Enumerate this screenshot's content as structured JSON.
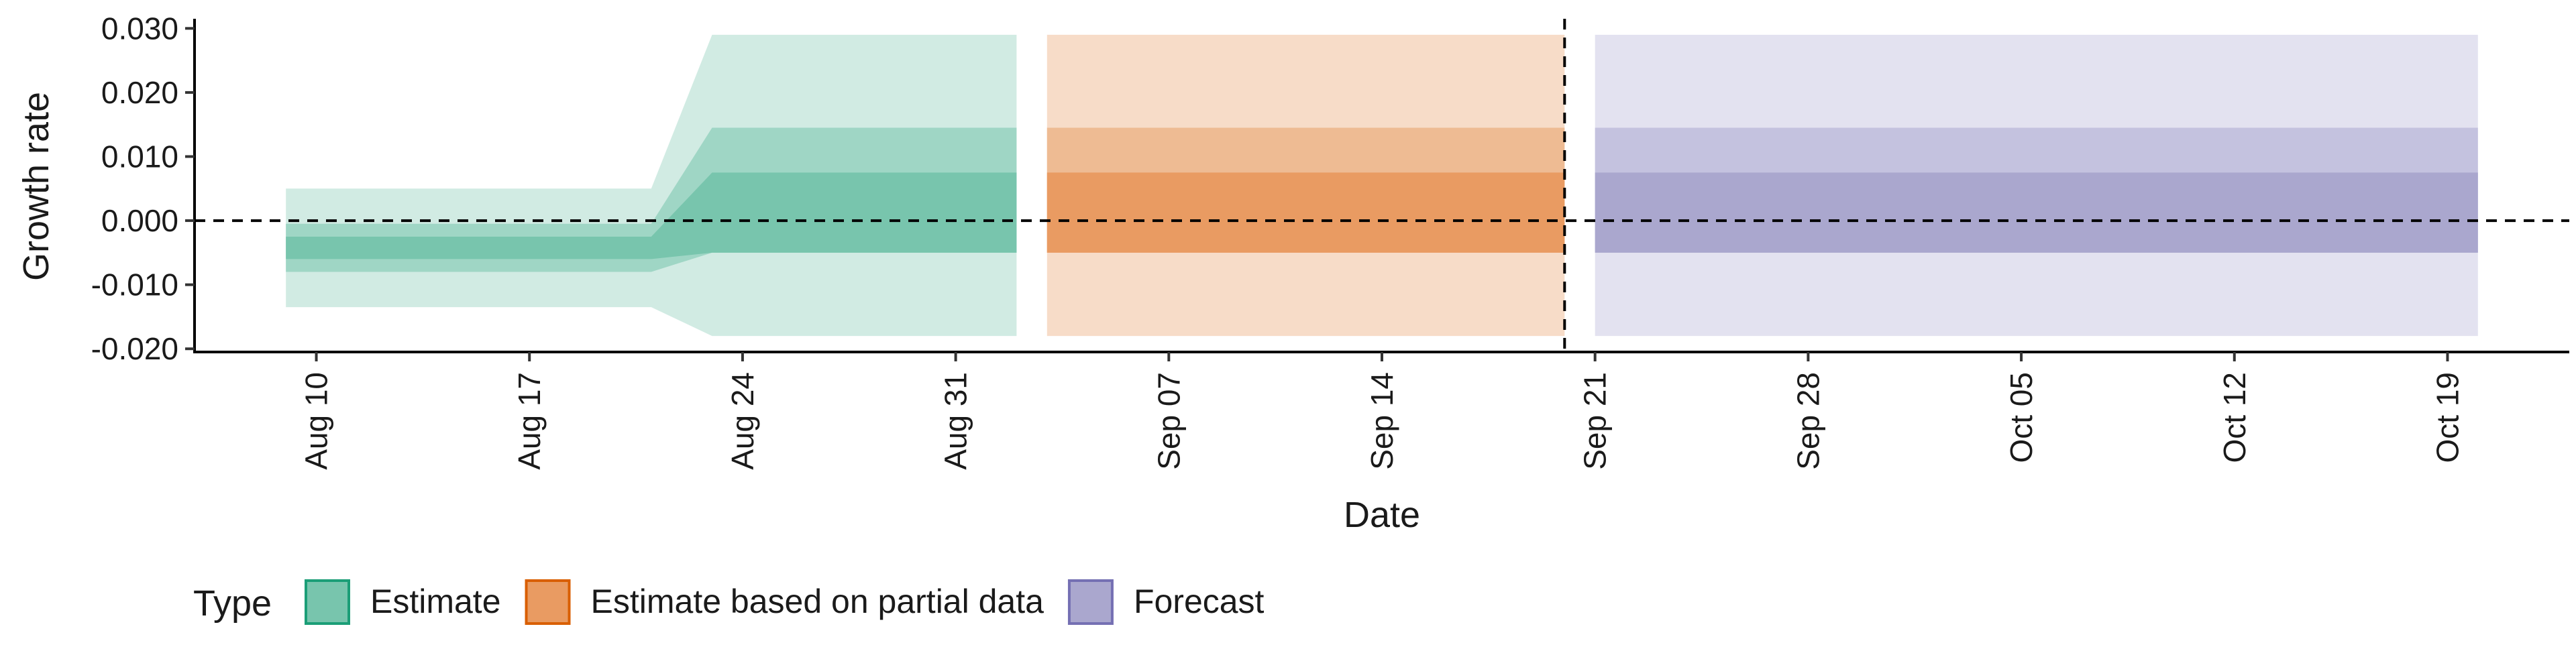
{
  "chart_data": {
    "type": "area",
    "title": "",
    "xlabel": "Date",
    "ylabel": "Growth rate",
    "y_ticks": [
      "-0.020",
      "-0.010",
      "0.000",
      "0.010",
      "0.020",
      "0.030"
    ],
    "y_tick_values": [
      -0.02,
      -0.01,
      0.0,
      0.01,
      0.02,
      0.03
    ],
    "ylim": [
      -0.0205,
      0.0315
    ],
    "xlim": [
      "2020-08-06",
      "2020-10-23"
    ],
    "x_ticks": [
      {
        "date": "2020-08-10",
        "label": "Aug 10"
      },
      {
        "date": "2020-08-17",
        "label": "Aug 17"
      },
      {
        "date": "2020-08-24",
        "label": "Aug 24"
      },
      {
        "date": "2020-08-31",
        "label": "Aug 31"
      },
      {
        "date": "2020-09-07",
        "label": "Sep 07"
      },
      {
        "date": "2020-09-14",
        "label": "Sep 14"
      },
      {
        "date": "2020-09-21",
        "label": "Sep 21"
      },
      {
        "date": "2020-09-28",
        "label": "Sep 28"
      },
      {
        "date": "2020-10-05",
        "label": "Oct 05"
      },
      {
        "date": "2020-10-12",
        "label": "Oct 12"
      },
      {
        "date": "2020-10-19",
        "label": "Oct 19"
      }
    ],
    "reference_lines": {
      "horizontal_y": 0.0,
      "vertical_date": "2020-09-20"
    },
    "legend": {
      "title": "Type",
      "position": "bottom",
      "entries": [
        {
          "label": "Estimate",
          "fill": "#78c5ad",
          "border": "#1b9e77"
        },
        {
          "label": "Estimate based on partial data",
          "fill": "#e99b62",
          "border": "#d95f02"
        },
        {
          "label": "Forecast",
          "fill": "#aaa7ce",
          "border": "#7570b3"
        }
      ]
    },
    "series": [
      {
        "name": "Estimate",
        "colors": {
          "outer": "#d1ebe3",
          "middle": "#9fd6c5",
          "inner": "#78c5ad"
        },
        "points": [
          {
            "date": "2020-08-09",
            "outer": [
              -0.0135,
              0.005
            ],
            "middle": [
              -0.008,
              -0.0005
            ],
            "inner": [
              -0.006,
              -0.0025
            ]
          },
          {
            "date": "2020-08-21",
            "outer": [
              -0.0135,
              0.005
            ],
            "middle": [
              -0.008,
              -0.0005
            ],
            "inner": [
              -0.006,
              -0.0025
            ]
          },
          {
            "date": "2020-08-23",
            "outer": [
              -0.018,
              0.029
            ],
            "middle": [
              -0.005,
              0.0145
            ],
            "inner": [
              -0.005,
              0.0075
            ]
          },
          {
            "date": "2020-09-02",
            "outer": [
              -0.018,
              0.029
            ],
            "middle": [
              -0.005,
              0.0145
            ],
            "inner": [
              -0.005,
              0.0075
            ]
          }
        ]
      },
      {
        "name": "Estimate based on partial data",
        "colors": {
          "outer": "#f7dcc8",
          "middle": "#eebb93",
          "inner": "#e99b62"
        },
        "points": [
          {
            "date": "2020-09-03",
            "outer": [
              -0.018,
              0.029
            ],
            "middle": [
              -0.005,
              0.0145
            ],
            "inner": [
              -0.005,
              0.0075
            ]
          },
          {
            "date": "2020-09-20",
            "outer": [
              -0.018,
              0.029
            ],
            "middle": [
              -0.005,
              0.0145
            ],
            "inner": [
              -0.005,
              0.0075
            ]
          }
        ]
      },
      {
        "name": "Forecast",
        "colors": {
          "outer": "#e3e2f0",
          "middle": "#c4c2df",
          "inner": "#aaa7ce"
        },
        "points": [
          {
            "date": "2020-09-21",
            "outer": [
              -0.018,
              0.029
            ],
            "middle": [
              -0.005,
              0.0145
            ],
            "inner": [
              -0.005,
              0.0075
            ]
          },
          {
            "date": "2020-10-20",
            "outer": [
              -0.018,
              0.029
            ],
            "middle": [
              -0.005,
              0.0145
            ],
            "inner": [
              -0.005,
              0.0075
            ]
          }
        ]
      }
    ]
  }
}
